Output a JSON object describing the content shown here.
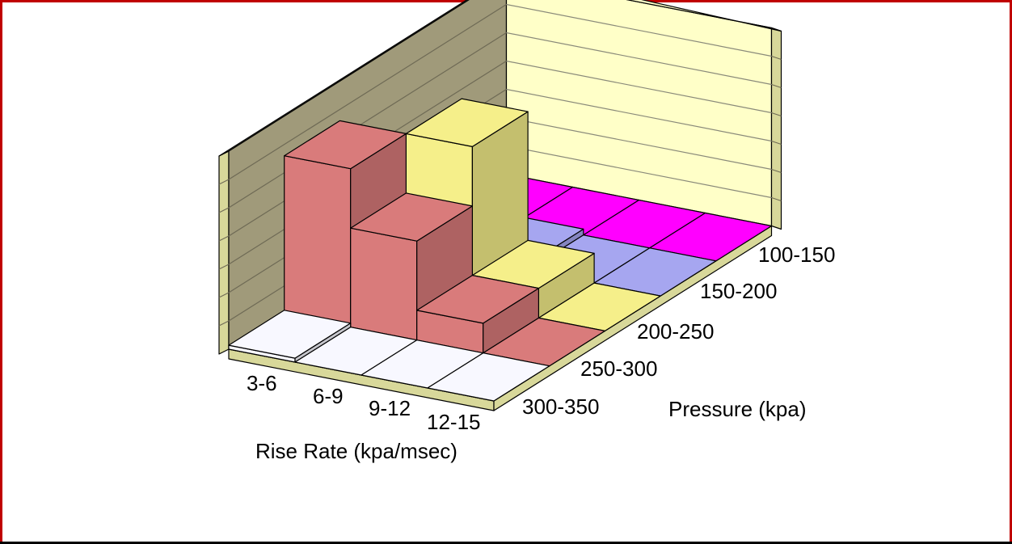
{
  "chart_data": {
    "type": "bar3d",
    "x_categories": [
      "3-6",
      "6-9",
      "9-12",
      "12-15"
    ],
    "z_categories": [
      "100-150",
      "150-200",
      "200-250",
      "250-300",
      "300-350"
    ],
    "xlabel": "Rise Rate (kpa/msec)",
    "zlabel": "Pressure (kpa)",
    "ylim": [
      0,
      10
    ],
    "grid": true,
    "legend": "none",
    "values": [
      [
        0.2,
        0,
        0,
        0
      ],
      [
        8.0,
        5.0,
        1.5,
        0
      ],
      [
        1.0,
        8.0,
        1.5,
        0
      ],
      [
        0,
        0.3,
        0,
        0
      ],
      [
        0,
        0,
        0,
        0
      ]
    ],
    "series_colors": [
      "#f8f8ff",
      "#d97b7b",
      "#f5ef8a",
      "#a6a6f0",
      "#ff00ff"
    ],
    "wall_colors": {
      "back": "#ffffc8",
      "side": "#a09a7a",
      "floor": "#ffffd2",
      "edge": "#d8d89a"
    },
    "frame_color": "#c00000"
  }
}
